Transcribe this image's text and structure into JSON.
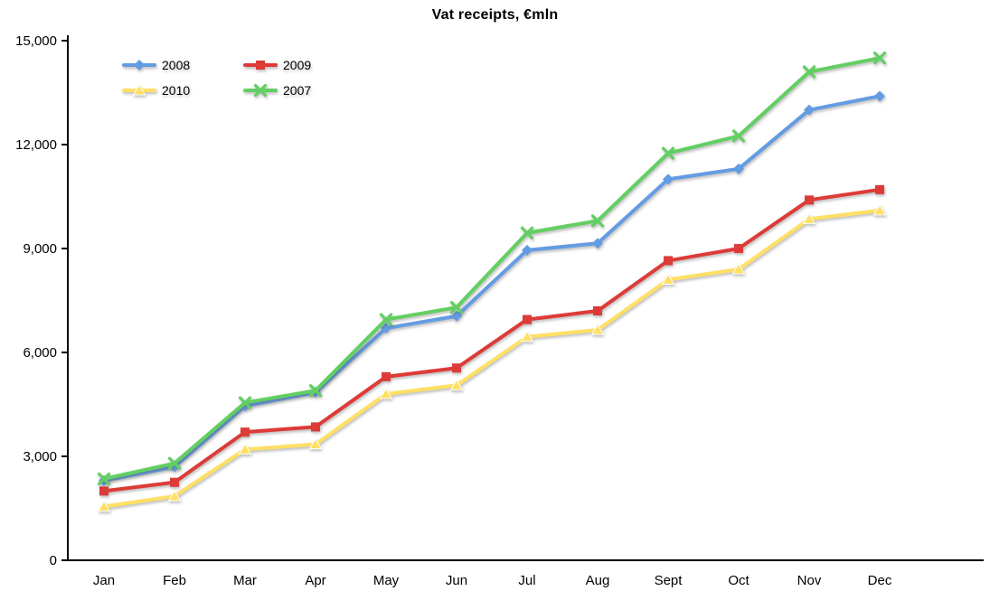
{
  "title": "Vat receipts, €mln",
  "chart_data": {
    "type": "line",
    "title": "Vat receipts, €mln",
    "xlabel": "",
    "ylabel": "",
    "categories": [
      "Jan",
      "Feb",
      "Mar",
      "Apr",
      "May",
      "Jun",
      "Jul",
      "Aug",
      "Sept",
      "Oct",
      "Nov",
      "Dec"
    ],
    "series": [
      {
        "name": "2008",
        "color": "#639CE3",
        "marker": "diamond",
        "values": [
          2300,
          2700,
          4450,
          4850,
          6700,
          7050,
          8950,
          9150,
          11000,
          11300,
          13000,
          13400
        ]
      },
      {
        "name": "2009",
        "color": "#DD3B38",
        "marker": "square",
        "values": [
          2000,
          2250,
          3700,
          3850,
          5300,
          5550,
          6950,
          7200,
          8650,
          9000,
          10400,
          10700
        ]
      },
      {
        "name": "2010",
        "color": "#FFE063",
        "marker": "triangle",
        "values": [
          1550,
          1850,
          3200,
          3350,
          4800,
          5050,
          6450,
          6650,
          8100,
          8400,
          9850,
          10100
        ]
      },
      {
        "name": "2007",
        "color": "#62CF62",
        "marker": "x",
        "values": [
          2350,
          2800,
          4550,
          4900,
          6950,
          7300,
          9450,
          9800,
          11750,
          12250,
          14100,
          14500
        ]
      }
    ],
    "ylim": [
      0,
      15000
    ],
    "yticks": [
      0,
      3000,
      6000,
      9000,
      12000,
      15000
    ],
    "ytick_labels": [
      "0",
      "3,000",
      "6,000",
      "9,000",
      "12,000",
      "15,000"
    ],
    "grid": false,
    "legend_position": "top-left",
    "legend_order": [
      "2008",
      "2009",
      "2010",
      "2007"
    ],
    "axis_color": "#000000",
    "text_color": "#000000"
  }
}
